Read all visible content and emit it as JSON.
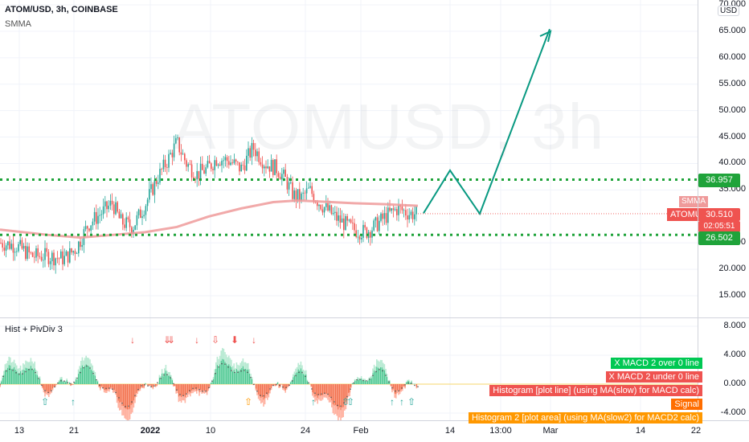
{
  "header": {
    "symbol_line": "ATOM/USD, 3h, COINBASE",
    "indicator": "SMMA"
  },
  "watermark": "ATOMUSD, 3h",
  "currency_badge": "USD",
  "price_axis": [
    "70.000",
    "65.000",
    "60.000",
    "55.000",
    "50.000",
    "45.000",
    "40.000",
    "35.000",
    "25.000",
    "20.000",
    "15.000"
  ],
  "price_tags": {
    "upper_level": "36.957",
    "smma_label": "SMMA",
    "symbol_label": "ATOMUSD",
    "last_price": "30.510",
    "countdown": "02:05:51",
    "lower_level": "26.502"
  },
  "colors": {
    "level_line": "#1fa33a",
    "projection": "#089981",
    "smma": "#ef9a9a",
    "up": "#26a69a",
    "down": "#ef5350",
    "signal": "#ff9800",
    "zero_line": "#f5d76e"
  },
  "indicator_pane": {
    "title": "Hist + PivDiv 3",
    "axis": [
      "8.000",
      "4.000",
      "0.000",
      "-4.000"
    ],
    "legend": [
      {
        "text": "X MACD 2 over 0 line",
        "color": "#00c853"
      },
      {
        "text": "X MACD 2 under 0 line",
        "color": "#ef5350"
      },
      {
        "text": "Histogram [plot line] (using MA(slow) for MACD calc)",
        "color": "#ef5350"
      },
      {
        "text": "Signal",
        "color": "#ff6d00"
      },
      {
        "text": "Histogram 2 [plot area] (using MA(slow2) for MACD2 calc)",
        "color": "#ff9800"
      }
    ]
  },
  "time_axis": [
    "13",
    "21",
    "2022",
    "10",
    "24",
    "Feb",
    "14",
    "13:00",
    "Mar",
    "14",
    "22"
  ]
}
